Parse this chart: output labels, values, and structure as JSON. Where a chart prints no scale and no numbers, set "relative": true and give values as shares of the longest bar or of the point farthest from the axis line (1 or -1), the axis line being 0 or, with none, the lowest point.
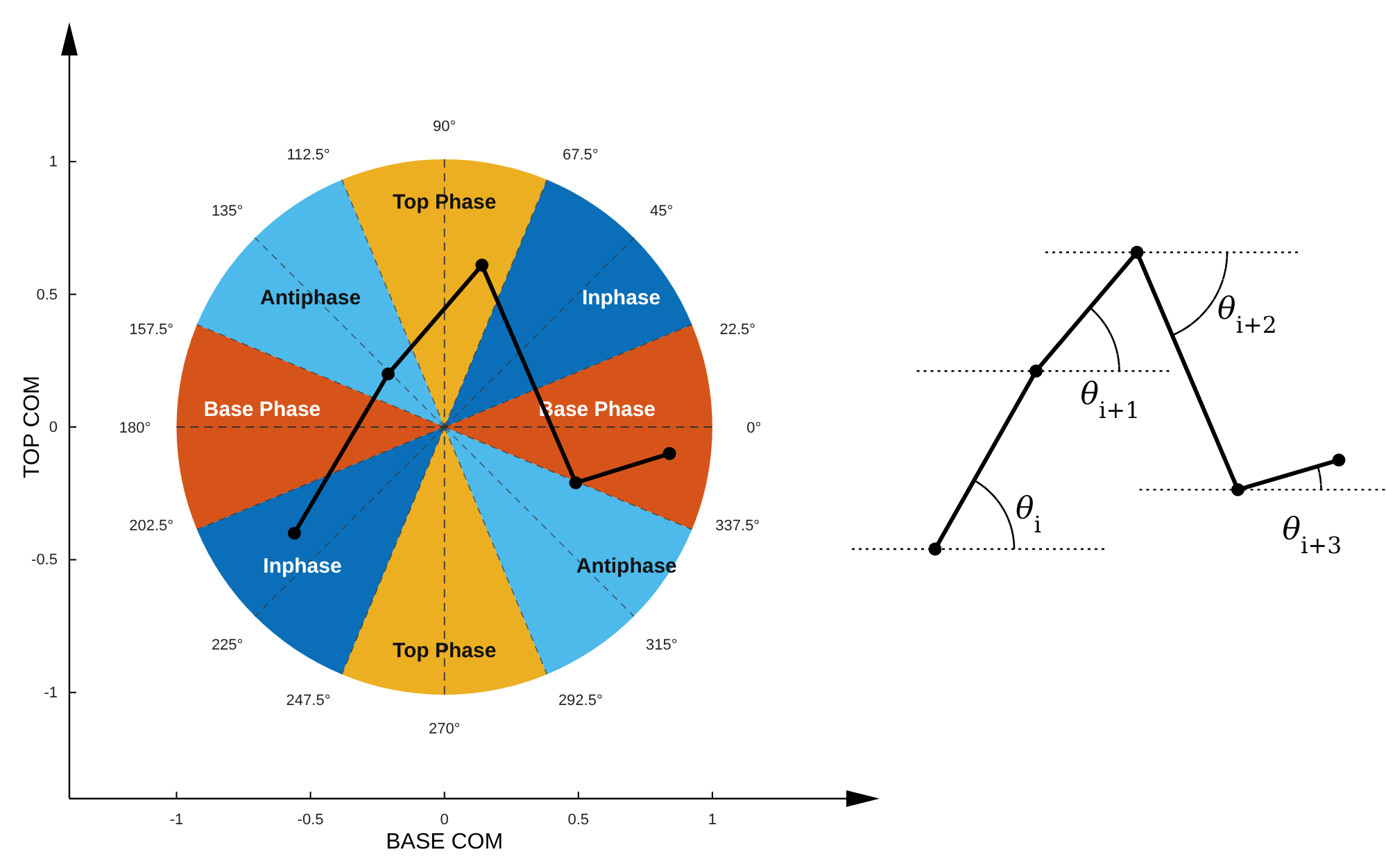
{
  "chart_data": [
    {
      "type": "line",
      "xlabel": "BASE COM",
      "ylabel": "TOP COM",
      "x": [
        -0.56,
        -0.21,
        0.14,
        0.49,
        0.84
      ],
      "series": [
        {
          "color": "#000000",
          "values": [
            -0.4,
            0.2,
            0.61,
            -0.21,
            -0.1
          ]
        }
      ],
      "marker": "circle",
      "line_style": "solid",
      "xlim": [
        -1.4,
        1.5
      ],
      "ylim": [
        -1.4,
        1.4
      ],
      "xticks": [
        -1,
        -0.5,
        0,
        0.5,
        1
      ],
      "yticks": [
        -1,
        -0.5,
        0,
        0.5,
        1
      ],
      "ref_lines": [
        {
          "axis": "x",
          "value": 0,
          "line_style": "dashed",
          "color": "#333333"
        },
        {
          "axis": "y",
          "value": 0,
          "line_style": "dashed",
          "color": "#333333"
        }
      ],
      "annotations": [
        "Top Phase",
        "Inphase",
        "Antiphase",
        "Base Phase",
        "Base Phase",
        "Inphase",
        "Antiphase",
        "Top Phase",
        "0°",
        "22.5°",
        "45°",
        "67.5°",
        "90°",
        "112.5°",
        "135°",
        "157.5°",
        "180°",
        "202.5°",
        "225°",
        "247.5°",
        "270°",
        "292.5°",
        "315°",
        "337.5°"
      ]
    },
    {
      "type": "line",
      "relative": true,
      "categories": [
        null,
        null,
        null,
        null,
        null
      ],
      "series": [
        {
          "color": "#000000",
          "values": [
            0,
            0.6,
            1,
            0.2,
            0.3
          ]
        }
      ],
      "marker": "circle",
      "line_style": "solid",
      "ref_lines": [
        {
          "axis": "y",
          "value": 0,
          "line_style": "dotted",
          "color": "#000000"
        },
        {
          "axis": "y",
          "value": 0.6,
          "line_style": "dotted",
          "color": "#000000"
        },
        {
          "axis": "y",
          "value": 1,
          "line_style": "dotted",
          "color": "#000000"
        },
        {
          "axis": "y",
          "value": 0.2,
          "line_style": "dotted",
          "color": "#000000"
        }
      ],
      "annotations": [
        "θ$_{i}$",
        "θ$_{i+1}$",
        "θ$_{i+2}$",
        "θ$_{i+3}$"
      ]
    }
  ]
}
